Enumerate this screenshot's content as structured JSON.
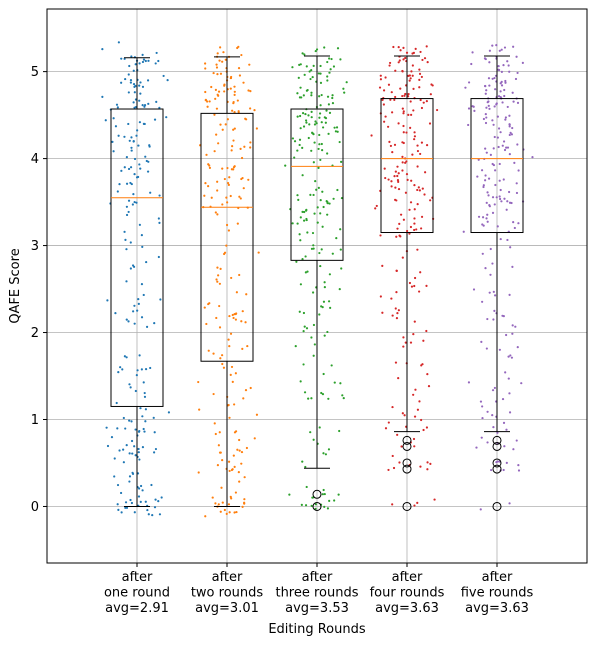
{
  "chart_data": {
    "type": "box",
    "title": "",
    "xlabel": "Editing Rounds",
    "ylabel": "QAFE Score",
    "ylim": [
      -0.65,
      5.72
    ],
    "yticks": [
      0,
      1,
      2,
      3,
      4,
      5
    ],
    "grid": true,
    "categories": [
      {
        "lines": [
          "after",
          "one round",
          "avg=2.91"
        ]
      },
      {
        "lines": [
          "after",
          "two rounds",
          "avg=3.01"
        ]
      },
      {
        "lines": [
          "after",
          "three rounds",
          "avg=3.53"
        ]
      },
      {
        "lines": [
          "after",
          "four rounds",
          "avg=3.63"
        ]
      },
      {
        "lines": [
          "after",
          "five rounds",
          "avg=3.63"
        ]
      }
    ],
    "series": [
      {
        "name": "after one round",
        "color": "#1f77b4",
        "avg": 2.91,
        "q1": 1.15,
        "median": 3.55,
        "q3": 4.57,
        "whisker_low": 0.0,
        "whisker_high": 5.16,
        "outliers": []
      },
      {
        "name": "after two rounds",
        "color": "#ff7f0e",
        "avg": 3.01,
        "q1": 1.67,
        "median": 3.44,
        "q3": 4.52,
        "whisker_low": 0.0,
        "whisker_high": 5.17,
        "outliers": []
      },
      {
        "name": "after three rounds",
        "color": "#2ca02c",
        "avg": 3.53,
        "q1": 2.83,
        "median": 3.91,
        "q3": 4.57,
        "whisker_low": 0.44,
        "whisker_high": 5.18,
        "outliers": [
          0.0,
          0.14
        ]
      },
      {
        "name": "after four rounds",
        "color": "#d62728",
        "avg": 3.63,
        "q1": 3.15,
        "median": 4.0,
        "q3": 4.69,
        "whisker_low": 0.86,
        "whisker_high": 5.18,
        "outliers": [
          0.0,
          0.43,
          0.5,
          0.69,
          0.76
        ]
      },
      {
        "name": "after five rounds",
        "color": "#9467bd",
        "avg": 3.63,
        "q1": 3.15,
        "median": 4.0,
        "q3": 4.69,
        "whisker_low": 0.86,
        "whisker_high": 5.18,
        "outliers": [
          0.0,
          0.43,
          0.5,
          0.69,
          0.76
        ]
      }
    ],
    "scatter_points_per_series": 230,
    "box_color": "#000000",
    "median_color": "#ff7f0e",
    "grid_color": "#b0b0b0"
  }
}
